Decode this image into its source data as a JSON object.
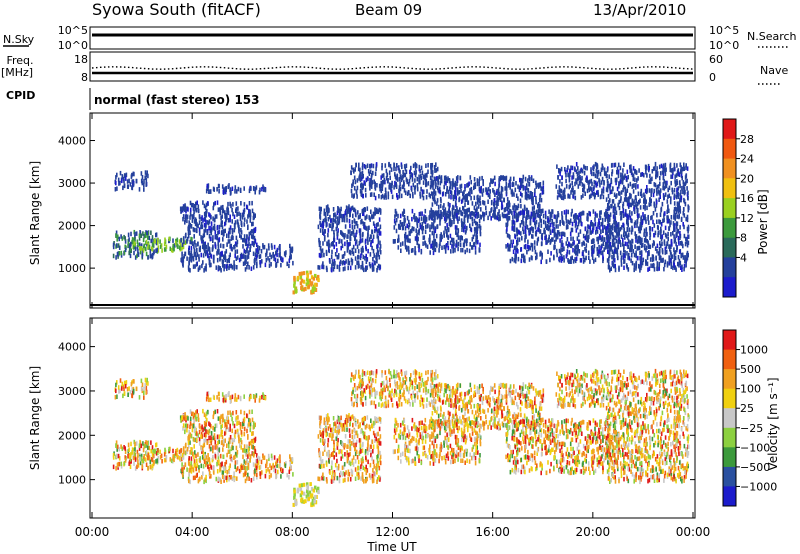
{
  "header": {
    "station": "Syowa South (fitACF)",
    "beam": "Beam 09",
    "date": "13/Apr/2010"
  },
  "nsky_panel": {
    "left_label": "N.Sky",
    "left_ticks": [
      "10^5",
      "10^0"
    ],
    "right_ticks": [
      "10^5",
      "10^0"
    ],
    "right_label": "N.Search"
  },
  "freq_panel": {
    "left_label_line1": "Freq.",
    "left_label_line2": "[MHz]",
    "left_ticks": [
      "18",
      "8"
    ],
    "right_ticks": [
      "60",
      "0"
    ],
    "right_label": "Nave"
  },
  "cpid_panel": {
    "label": "CPID",
    "mode_text": "normal (fast stereo) 153"
  },
  "chart_data": [
    {
      "type": "heatmap",
      "name": "power",
      "ylabel": "Slant Range [km]",
      "xlabel": "Time UT",
      "xlim_hours": [
        0,
        24
      ],
      "ylim_km": [
        180,
        4600
      ],
      "x_tick_labels": [
        "00:00",
        "04:00",
        "08:00",
        "12:00",
        "16:00",
        "20:00",
        "00:00"
      ],
      "y_tick_labels": [
        "1000",
        "2000",
        "3000",
        "4000"
      ],
      "colorbar": {
        "label": "Power [dB]",
        "ticks": [
          "28",
          "24",
          "20",
          "16",
          "12",
          "8",
          "4"
        ],
        "colors": [
          "#1c1ccc",
          "#24409c",
          "#2a6a5a",
          "#3c9a3c",
          "#9ad020",
          "#f0c010",
          "#f09020",
          "#f05810",
          "#e01818"
        ]
      },
      "echo_clusters": [
        {
          "t": [
            0.9,
            2.2
          ],
          "r": [
            2900,
            3300
          ],
          "level": 1
        },
        {
          "t": [
            0.8,
            2.6
          ],
          "r": [
            1300,
            1900
          ],
          "level": 2
        },
        {
          "t": [
            1.5,
            4.0
          ],
          "r": [
            1450,
            1750
          ],
          "level": 3
        },
        {
          "t": [
            3.5,
            6.5
          ],
          "r": [
            1000,
            2600
          ],
          "level": 1
        },
        {
          "t": [
            4.5,
            7.0
          ],
          "r": [
            2800,
            3000
          ],
          "level": 1
        },
        {
          "t": [
            6.5,
            8.0
          ],
          "r": [
            1100,
            1600
          ],
          "level": 1
        },
        {
          "t": [
            8.0,
            9.0
          ],
          "r": [
            450,
            950
          ],
          "level": 5
        },
        {
          "t": [
            9.0,
            11.5
          ],
          "r": [
            1000,
            2500
          ],
          "level": 1
        },
        {
          "t": [
            10.3,
            13.8
          ],
          "r": [
            2700,
            3500
          ],
          "level": 1
        },
        {
          "t": [
            12.0,
            15.5
          ],
          "r": [
            1400,
            2400
          ],
          "level": 1
        },
        {
          "t": [
            13.5,
            18.0
          ],
          "r": [
            2200,
            3200
          ],
          "level": 1
        },
        {
          "t": [
            16.5,
            21.0
          ],
          "r": [
            1200,
            2400
          ],
          "level": 1
        },
        {
          "t": [
            18.5,
            20.5
          ],
          "r": [
            2700,
            3500
          ],
          "level": 1
        },
        {
          "t": [
            20.5,
            23.8
          ],
          "r": [
            1000,
            3500
          ],
          "level": 1
        }
      ]
    },
    {
      "type": "heatmap",
      "name": "velocity",
      "ylabel": "Slant Range [km]",
      "xlabel": "Time UT",
      "xlim_hours": [
        0,
        24
      ],
      "ylim_km": [
        180,
        4600
      ],
      "x_tick_labels": [
        "00:00",
        "04:00",
        "08:00",
        "12:00",
        "16:00",
        "20:00",
        "00:00"
      ],
      "y_tick_labels": [
        "1000",
        "2000",
        "3000",
        "4000"
      ],
      "colorbar": {
        "label": "Velocity [m s⁻¹]",
        "ticks": [
          "1000",
          "500",
          "100",
          "25",
          "−25",
          "−100",
          "−500",
          "−1000"
        ],
        "colors": [
          "#1c1ccc",
          "#2a50a0",
          "#3c9a3c",
          "#8cd040",
          "#c8c8c8",
          "#f0d010",
          "#f0a020",
          "#f06010",
          "#e01818"
        ]
      }
    }
  ],
  "x_axis": {
    "ticks": [
      "00:00",
      "04:00",
      "08:00",
      "12:00",
      "16:00",
      "20:00",
      "00:00"
    ],
    "title": "Time UT"
  }
}
